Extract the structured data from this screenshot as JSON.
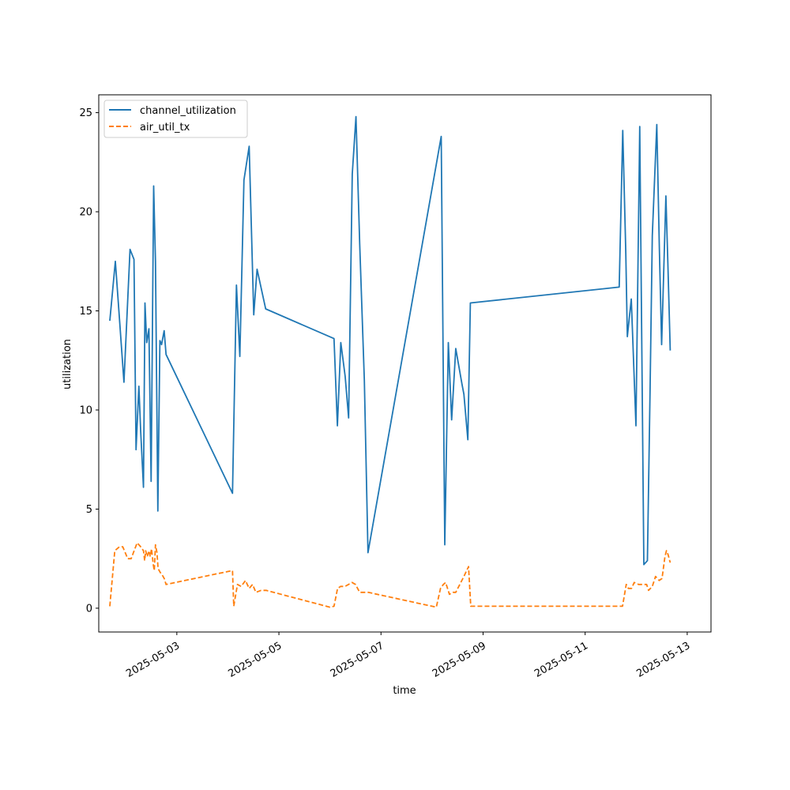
{
  "chart_data": {
    "type": "line",
    "xlabel": "time",
    "ylabel": "utilization",
    "x_type": "date",
    "xlim": [
      "2025-05-01T11:17",
      "2025-05-13T11:11"
    ],
    "ylim": [
      -1.2,
      25.9
    ],
    "x_ticks": [
      "2025-05-03",
      "2025-05-05",
      "2025-05-07",
      "2025-05-09",
      "2025-05-11",
      "2025-05-13"
    ],
    "y_ticks": [
      0,
      5,
      10,
      15,
      20,
      25
    ],
    "grid": false,
    "legend_position": "top-left",
    "series": [
      {
        "name": "channel_utilization",
        "color": "#1f77b4",
        "dash": "solid",
        "points": [
          [
            "2025-05-01T16:30",
            14.5
          ],
          [
            "2025-05-01T19:05",
            17.5
          ],
          [
            "2025-05-01T20:46",
            15.0
          ],
          [
            "2025-05-01T23:07",
            11.4
          ],
          [
            "2025-05-02T01:59",
            18.1
          ],
          [
            "2025-05-02T03:50",
            17.6
          ],
          [
            "2025-05-02T04:48",
            8.0
          ],
          [
            "2025-05-02T06:10",
            11.2
          ],
          [
            "2025-05-02T06:58",
            9.0
          ],
          [
            "2025-05-02T08:19",
            6.1
          ],
          [
            "2025-05-02T09:02",
            15.4
          ],
          [
            "2025-05-02T09:50",
            13.4
          ],
          [
            "2025-05-02T10:52",
            14.1
          ],
          [
            "2025-05-02T11:54",
            6.4
          ],
          [
            "2025-05-02T13:06",
            21.3
          ],
          [
            "2025-05-02T13:58",
            17.5
          ],
          [
            "2025-05-02T15:05",
            4.9
          ],
          [
            "2025-05-02T16:02",
            13.5
          ],
          [
            "2025-05-02T16:50",
            13.3
          ],
          [
            "2025-05-02T18:02",
            14.0
          ],
          [
            "2025-05-02T18:55",
            12.8
          ],
          [
            "2025-05-04T02:10",
            5.8
          ],
          [
            "2025-05-04T04:02",
            16.3
          ],
          [
            "2025-05-04T05:38",
            12.7
          ],
          [
            "2025-05-04T07:34",
            21.6
          ],
          [
            "2025-05-04T10:00",
            23.3
          ],
          [
            "2025-05-04T12:10",
            14.8
          ],
          [
            "2025-05-04T13:44",
            17.1
          ],
          [
            "2025-05-04T17:46",
            15.1
          ],
          [
            "2025-05-06T01:55",
            13.6
          ],
          [
            "2025-05-06T03:31",
            9.2
          ],
          [
            "2025-05-06T05:07",
            13.4
          ],
          [
            "2025-05-06T07:10",
            11.7
          ],
          [
            "2025-05-06T08:48",
            9.6
          ],
          [
            "2025-05-06T10:29",
            21.9
          ],
          [
            "2025-05-06T12:14",
            24.8
          ],
          [
            "2025-05-06T13:58",
            18.4
          ],
          [
            "2025-05-06T16:10",
            11.5
          ],
          [
            "2025-05-06T17:53",
            2.8
          ],
          [
            "2025-05-08T04:20",
            23.8
          ],
          [
            "2025-05-08T06:00",
            3.2
          ],
          [
            "2025-05-08T07:40",
            13.4
          ],
          [
            "2025-05-08T09:14",
            9.5
          ],
          [
            "2025-05-08T11:10",
            13.1
          ],
          [
            "2025-05-08T14:05",
            11.3
          ],
          [
            "2025-05-08T15:00",
            10.8
          ],
          [
            "2025-05-08T16:50",
            8.5
          ],
          [
            "2025-05-08T18:02",
            15.4
          ],
          [
            "2025-05-11T16:00",
            16.2
          ],
          [
            "2025-05-11T17:41",
            24.1
          ],
          [
            "2025-05-11T19:05",
            18.0
          ],
          [
            "2025-05-11T19:50",
            13.7
          ],
          [
            "2025-05-11T21:43",
            15.6
          ],
          [
            "2025-05-11T23:53",
            9.2
          ],
          [
            "2025-05-12T01:41",
            24.3
          ],
          [
            "2025-05-12T03:36",
            2.2
          ],
          [
            "2025-05-12T05:17",
            2.4
          ],
          [
            "2025-05-12T06:31",
            10.8
          ],
          [
            "2025-05-12T07:35",
            18.8
          ],
          [
            "2025-05-12T09:41",
            24.4
          ],
          [
            "2025-05-12T10:53",
            18.2
          ],
          [
            "2025-05-12T11:58",
            13.3
          ],
          [
            "2025-05-12T13:58",
            20.8
          ],
          [
            "2025-05-12T14:55",
            17.4
          ],
          [
            "2025-05-12T16:01",
            13.0
          ]
        ]
      },
      {
        "name": "air_util_tx",
        "color": "#ff7f0e",
        "dash": "dashed",
        "points": [
          [
            "2025-05-01T16:30",
            0.1
          ],
          [
            "2025-05-01T18:50",
            2.9
          ],
          [
            "2025-05-01T21:00",
            3.1
          ],
          [
            "2025-05-01T22:35",
            3.1
          ],
          [
            "2025-05-02T00:55",
            2.5
          ],
          [
            "2025-05-02T02:30",
            2.5
          ],
          [
            "2025-05-02T03:55",
            2.9
          ],
          [
            "2025-05-02T05:20",
            3.3
          ],
          [
            "2025-05-02T07:00",
            3.1
          ],
          [
            "2025-05-02T08:19",
            2.9
          ],
          [
            "2025-05-02T08:52",
            2.4
          ],
          [
            "2025-05-02T09:20",
            2.9
          ],
          [
            "2025-05-02T10:05",
            2.6
          ],
          [
            "2025-05-02T10:52",
            2.9
          ],
          [
            "2025-05-02T11:30",
            2.6
          ],
          [
            "2025-05-02T12:06",
            3.0
          ],
          [
            "2025-05-02T12:54",
            2.2
          ],
          [
            "2025-05-02T13:25",
            1.9
          ],
          [
            "2025-05-02T13:58",
            3.2
          ],
          [
            "2025-05-02T14:40",
            2.8
          ],
          [
            "2025-05-02T15:10",
            2.0
          ],
          [
            "2025-05-02T16:14",
            1.8
          ],
          [
            "2025-05-02T17:00",
            1.7
          ],
          [
            "2025-05-02T18:05",
            1.5
          ],
          [
            "2025-05-02T18:55",
            1.2
          ],
          [
            "2025-05-04T02:10",
            1.9
          ],
          [
            "2025-05-04T02:46",
            0.1
          ],
          [
            "2025-05-04T03:34",
            0.6
          ],
          [
            "2025-05-04T04:31",
            1.2
          ],
          [
            "2025-05-04T06:14",
            1.1
          ],
          [
            "2025-05-04T08:19",
            1.4
          ],
          [
            "2025-05-04T09:07",
            1.2
          ],
          [
            "2025-05-04T10:00",
            1.0
          ],
          [
            "2025-05-04T11:36",
            1.2
          ],
          [
            "2025-05-04T13:10",
            0.8
          ],
          [
            "2025-05-04T15:38",
            0.9
          ],
          [
            "2025-05-04T18:00",
            0.9
          ],
          [
            "2025-05-06T00:00",
            0.05
          ],
          [
            "2025-05-06T01:55",
            0.1
          ],
          [
            "2025-05-06T03:34",
            1.0
          ],
          [
            "2025-05-06T05:02",
            1.1
          ],
          [
            "2025-05-06T07:05",
            1.1
          ],
          [
            "2025-05-06T10:26",
            1.3
          ],
          [
            "2025-05-06T12:00",
            1.2
          ],
          [
            "2025-05-06T14:00",
            0.8
          ],
          [
            "2025-05-06T18:00",
            0.8
          ],
          [
            "2025-05-08T02:00",
            0.05
          ],
          [
            "2025-05-08T04:00",
            1.0
          ],
          [
            "2025-05-08T05:20",
            1.2
          ],
          [
            "2025-05-08T06:25",
            1.3
          ],
          [
            "2025-05-08T08:10",
            0.7
          ],
          [
            "2025-05-08T09:50",
            0.8
          ],
          [
            "2025-05-08T11:10",
            0.8
          ],
          [
            "2025-05-08T15:00",
            1.6
          ],
          [
            "2025-05-08T17:10",
            2.1
          ],
          [
            "2025-05-08T18:14",
            0.1
          ],
          [
            "2025-05-11T17:35",
            0.1
          ],
          [
            "2025-05-11T19:20",
            1.2
          ],
          [
            "2025-05-11T20:20",
            1.0
          ],
          [
            "2025-05-11T21:48",
            1.0
          ],
          [
            "2025-05-11T23:05",
            1.3
          ],
          [
            "2025-05-12T01:10",
            1.2
          ],
          [
            "2025-05-12T03:00",
            1.2
          ],
          [
            "2025-05-12T04:55",
            1.2
          ],
          [
            "2025-05-12T05:50",
            0.9
          ],
          [
            "2025-05-12T07:35",
            1.1
          ],
          [
            "2025-05-12T09:07",
            1.6
          ],
          [
            "2025-05-12T10:48",
            1.4
          ],
          [
            "2025-05-12T12:10",
            1.5
          ],
          [
            "2025-05-12T13:31",
            2.6
          ],
          [
            "2025-05-12T14:14",
            2.9
          ],
          [
            "2025-05-12T15:00",
            2.7
          ],
          [
            "2025-05-12T16:01",
            2.3
          ]
        ]
      }
    ]
  }
}
